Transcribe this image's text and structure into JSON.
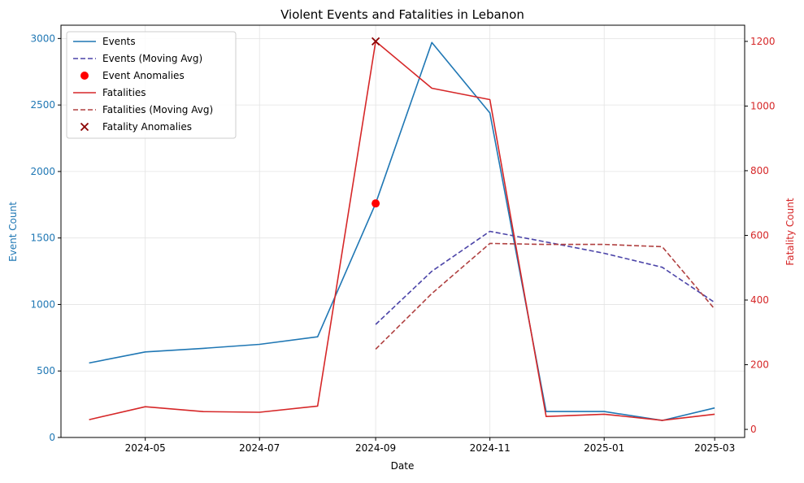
{
  "chart_data": {
    "type": "line",
    "title": "Violent Events and Fatalities in Lebanon",
    "xlabel": "Date",
    "ylabel_left": "Event Count",
    "ylabel_right": "Fatality Count",
    "x": [
      "2024-04-01",
      "2024-05-01",
      "2024-06-01",
      "2024-07-01",
      "2024-08-01",
      "2024-09-01",
      "2024-10-01",
      "2024-11-01",
      "2024-12-01",
      "2025-01-01",
      "2025-02-01",
      "2025-03-01"
    ],
    "x_ticks": [
      "2024-05",
      "2024-07",
      "2024-09",
      "2024-11",
      "2025-01",
      "2025-03"
    ],
    "left_axis": {
      "ylim": [
        0,
        3100
      ],
      "ticks": [
        0,
        500,
        1000,
        1500,
        2000,
        2500,
        3000
      ]
    },
    "right_axis": {
      "ylim": [
        -25,
        1250
      ],
      "ticks": [
        0,
        200,
        400,
        600,
        800,
        1000,
        1200
      ]
    },
    "grid": true,
    "legend_position": "top-left",
    "series": [
      {
        "name": "Events",
        "axis": "left",
        "style": "line",
        "color": "#1f77b4",
        "values": [
          560,
          643,
          670,
          700,
          757,
          1760,
          2970,
          2440,
          195,
          195,
          128,
          222
        ]
      },
      {
        "name": "Events (Moving Avg)",
        "axis": "left",
        "style": "dashed",
        "color": "#4b44a8",
        "values": [
          null,
          null,
          null,
          null,
          null,
          850,
          1250,
          1550,
          1470,
          1385,
          1280,
          1015
        ]
      },
      {
        "name": "Event Anomalies",
        "axis": "left",
        "style": "point",
        "color": "#ff0000",
        "points": [
          [
            "2024-09-01",
            1760
          ]
        ]
      },
      {
        "name": "Fatalities",
        "axis": "right",
        "style": "line",
        "color": "#d62728",
        "values": [
          30,
          70,
          55,
          53,
          72,
          1200,
          1055,
          1020,
          40,
          47,
          28,
          47
        ]
      },
      {
        "name": "Fatalities (Moving Avg)",
        "axis": "right",
        "style": "dashed",
        "color": "#b04040",
        "values": [
          null,
          null,
          null,
          null,
          null,
          248,
          420,
          575,
          572,
          572,
          565,
          372
        ]
      },
      {
        "name": "Fatality Anomalies",
        "axis": "right",
        "style": "cross",
        "color": "#8b0000",
        "points": [
          [
            "2024-09-01",
            1200
          ]
        ]
      }
    ]
  }
}
